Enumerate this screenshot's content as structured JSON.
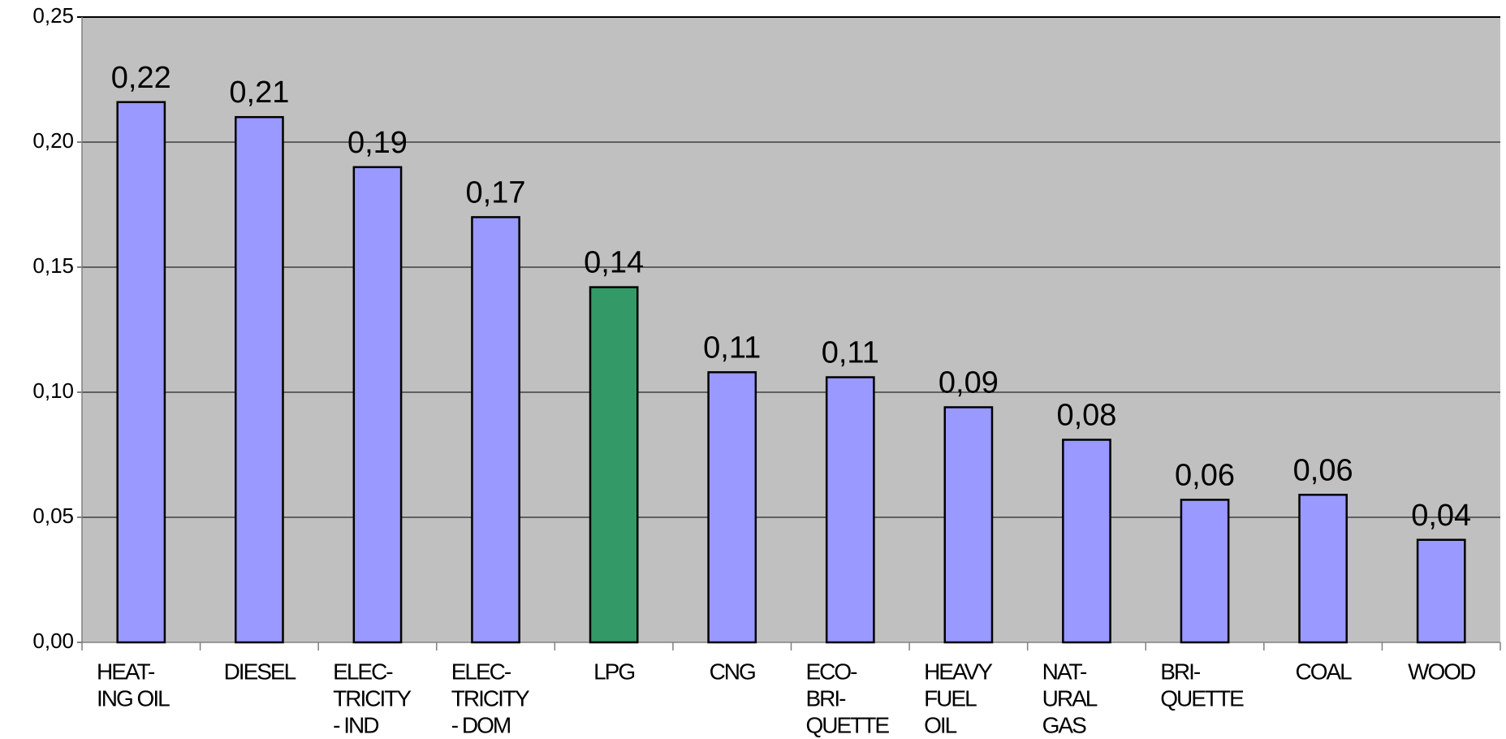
{
  "chart_data": {
    "type": "bar",
    "categories": [
      [
        "HEAT-",
        "ING OIL"
      ],
      [
        "DIESEL"
      ],
      [
        "ELEC-",
        "TRICITY",
        "- IND"
      ],
      [
        "ELEC-",
        "TRICITY",
        "- DOM"
      ],
      [
        "LPG"
      ],
      [
        "CNG"
      ],
      [
        "ECO-",
        "BRI-",
        "QUETTE"
      ],
      [
        "HEAVY",
        "FUEL",
        "OIL"
      ],
      [
        "NAT-",
        "URAL",
        "GAS"
      ],
      [
        "BRI-",
        "QUETTE"
      ],
      [
        "COAL"
      ],
      [
        "WOOD"
      ]
    ],
    "values": [
      0.216,
      0.21,
      0.19,
      0.17,
      0.142,
      0.108,
      0.106,
      0.094,
      0.081,
      0.057,
      0.059,
      0.041
    ],
    "value_labels": [
      "0,22",
      "0,21",
      "0,19",
      "0,17",
      "0,14",
      "0,11",
      "0,11",
      "0,09",
      "0,08",
      "0,06",
      "0,06",
      "0,04"
    ],
    "colors": [
      "#9999ff",
      "#9999ff",
      "#9999ff",
      "#9999ff",
      "#339966",
      "#9999ff",
      "#9999ff",
      "#9999ff",
      "#9999ff",
      "#9999ff",
      "#9999ff",
      "#9999ff"
    ],
    "ylim": [
      0,
      0.25
    ],
    "yticks": [
      {
        "value": 0,
        "label": "0,00"
      },
      {
        "value": 0.05,
        "label": "0,05"
      },
      {
        "value": 0.1,
        "label": "0,10"
      },
      {
        "value": 0.15,
        "label": "0,15"
      },
      {
        "value": 0.2,
        "label": "0,20"
      },
      {
        "value": 0.25,
        "label": "0,25"
      }
    ],
    "grid": true
  }
}
